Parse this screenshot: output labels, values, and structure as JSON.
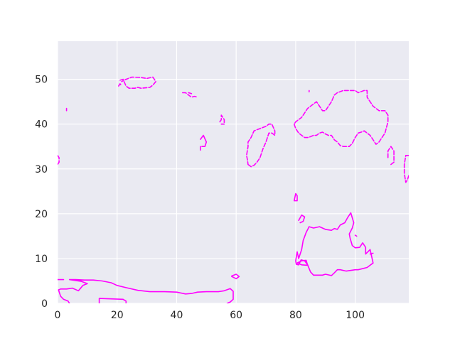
{
  "chart_data": {
    "type": "contour",
    "title": "",
    "xlabel": "",
    "ylabel": "",
    "xlim": [
      0,
      118
    ],
    "ylim": [
      0,
      58.5
    ],
    "x_ticks": [
      0,
      20,
      40,
      60,
      80,
      100
    ],
    "y_ticks": [
      0,
      10,
      20,
      30,
      40,
      50
    ],
    "grid": true,
    "background": "#eaeaf2",
    "line_color": "#ff00ff",
    "series": [
      {
        "style": "solid",
        "paths": [
          [
            [
              0,
              5.3
            ],
            [
              2,
              5.3
            ]
          ],
          [
            [
              0.3,
              3.0
            ],
            [
              1,
              3.2
            ],
            [
              3,
              3.2
            ],
            [
              5,
              3.4
            ],
            [
              7,
              2.8
            ],
            [
              8.5,
              4.0
            ],
            [
              10,
              4.4
            ],
            [
              8,
              4.9
            ],
            [
              4,
              5.3
            ],
            [
              6,
              5.3
            ],
            [
              9,
              5.2
            ],
            [
              12,
              5.2
            ],
            [
              15,
              5.0
            ],
            [
              18,
              4.6
            ],
            [
              20,
              4.0
            ],
            [
              23,
              3.5
            ],
            [
              27,
              2.9
            ],
            [
              31,
              2.6
            ],
            [
              36,
              2.6
            ],
            [
              40,
              2.5
            ],
            [
              43,
              2.1
            ],
            [
              45,
              2.2
            ],
            [
              47,
              2.5
            ],
            [
              50,
              2.6
            ],
            [
              54,
              2.6
            ],
            [
              56,
              2.8
            ],
            [
              58,
              3.3
            ],
            [
              59,
              2.7
            ],
            [
              59,
              0.9
            ],
            [
              58,
              0.3
            ],
            [
              57,
              0
            ]
          ],
          [
            [
              0.3,
              3.0
            ],
            [
              1,
              1.6
            ],
            [
              2,
              0.9
            ],
            [
              3.5,
              0.5
            ],
            [
              4,
              0
            ]
          ],
          [
            [
              14,
              0
            ],
            [
              14,
              1.1
            ],
            [
              22,
              0.9
            ],
            [
              23,
              0.5
            ],
            [
              23,
              0
            ]
          ],
          [
            [
              58.5,
              6.1
            ],
            [
              60,
              6.5
            ],
            [
              61,
              6.0
            ],
            [
              60,
              5.5
            ],
            [
              58.5,
              6.0
            ]
          ],
          [
            [
              48,
              36.6
            ],
            [
              49,
              37.5
            ],
            [
              50,
              36.0
            ],
            [
              49.5,
              35.0
            ],
            [
              48.5,
              35.0
            ]
          ],
          [
            [
              48,
              35.0
            ],
            [
              48,
              34.2
            ]
          ],
          [
            [
              79.5,
              22.9
            ],
            [
              80,
              24.5
            ],
            [
              80.5,
              24.0
            ],
            [
              80.5,
              22.9
            ],
            [
              79.5,
              22.9
            ]
          ],
          [
            [
              81,
              18.5
            ],
            [
              82,
              19.7
            ],
            [
              83,
              19.3
            ],
            [
              82.5,
              18.3
            ],
            [
              81.5,
              18.0
            ]
          ],
          [
            [
              80,
              9.5
            ],
            [
              80.2,
              8.7
            ],
            [
              81,
              8.6
            ],
            [
              81.8,
              9.7
            ],
            [
              83,
              9.5
            ],
            [
              84,
              8.6
            ],
            [
              85,
              7.0
            ],
            [
              86,
              6.3
            ],
            [
              89,
              6.3
            ],
            [
              90,
              6.5
            ],
            [
              92,
              6.2
            ],
            [
              93,
              6.8
            ],
            [
              94,
              7.5
            ],
            [
              95,
              7.5
            ],
            [
              97,
              7.2
            ],
            [
              100,
              7.5
            ],
            [
              101,
              7.5
            ],
            [
              104,
              8.0
            ],
            [
              106,
              9.0
            ],
            [
              105,
              12.0
            ],
            [
              103.5,
              11.0
            ],
            [
              103.5,
              12.5
            ],
            [
              102.5,
              13.5
            ],
            [
              101.5,
              12.5
            ],
            [
              100,
              12.4
            ],
            [
              99,
              12.9
            ],
            [
              98.3,
              14.5
            ],
            [
              98,
              15.5
            ],
            [
              99,
              16.8
            ],
            [
              99.5,
              18.0
            ],
            [
              98.5,
              20.2
            ],
            [
              97.5,
              19.2
            ],
            [
              96.5,
              18.0
            ],
            [
              95,
              17.5
            ],
            [
              94,
              16.5
            ],
            [
              93,
              16.7
            ],
            [
              92,
              16.3
            ],
            [
              90,
              16.5
            ],
            [
              88,
              17.1
            ],
            [
              86,
              16.8
            ],
            [
              84.5,
              17.1
            ],
            [
              83.5,
              15.8
            ],
            [
              82.5,
              14.0
            ],
            [
              82,
              12.0
            ],
            [
              81,
              10.0
            ],
            [
              80.5,
              11.5
            ],
            [
              80,
              9.5
            ]
          ],
          [
            [
              80.5,
              9.0
            ],
            [
              82,
              8.6
            ],
            [
              84,
              8.5
            ],
            [
              83.5,
              9.6
            ],
            [
              82,
              9.5
            ],
            [
              80.5,
              9.0
            ]
          ],
          [
            [
              100,
              15.2
            ],
            [
              100.5,
              15.0
            ]
          ],
          [
            [
              105,
              11.0
            ],
            [
              106,
              11.2
            ]
          ]
        ]
      },
      {
        "style": "dashed",
        "paths": [
          [
            [
              20.5,
              48.5
            ],
            [
              21,
              49.0
            ],
            [
              21.5,
              48.5
            ]
          ],
          [
            [
              21,
              49.8
            ],
            [
              22,
              50.0
            ],
            [
              23,
              48.5
            ],
            [
              24,
              48.0
            ],
            [
              26,
              48.0
            ],
            [
              27,
              48.2
            ],
            [
              28,
              48.0
            ],
            [
              31,
              48.2
            ],
            [
              32,
              48.7
            ],
            [
              33,
              49.5
            ],
            [
              32,
              50.5
            ],
            [
              30,
              50.2
            ],
            [
              28,
              50.4
            ],
            [
              25,
              50.5
            ],
            [
              23,
              50.0
            ],
            [
              21.5,
              49.5
            ]
          ],
          [
            [
              42,
              47.0
            ],
            [
              43,
              47.0
            ],
            [
              44,
              46.5
            ],
            [
              45,
              46.0
            ],
            [
              46,
              46.2
            ],
            [
              47,
              46.0
            ]
          ],
          [
            [
              44,
              47.0
            ],
            [
              45,
              46.8
            ]
          ],
          [
            [
              3,
              43.0
            ],
            [
              3,
              43.5
            ]
          ],
          [
            [
              84.5,
              47.2
            ],
            [
              84.5,
              47.5
            ]
          ],
          [
            [
              54.5,
              40.5
            ],
            [
              55,
              41.0
            ],
            [
              55,
              42.0
            ],
            [
              56,
              41.0
            ],
            [
              56,
              40.0
            ],
            [
              55,
              40.0
            ]
          ],
          [
            [
              64,
              31.0
            ],
            [
              65,
              30.5
            ],
            [
              66,
              30.8
            ],
            [
              67,
              31.5
            ],
            [
              68,
              32.5
            ],
            [
              69,
              34.5
            ],
            [
              70,
              36.0
            ],
            [
              71,
              38.0
            ],
            [
              72,
              38.0
            ],
            [
              73,
              37.5
            ],
            [
              73,
              38.5
            ],
            [
              72,
              40.0
            ],
            [
              71,
              40.0
            ],
            [
              70,
              39.5
            ],
            [
              68,
              39.0
            ],
            [
              66,
              38.5
            ],
            [
              65,
              37.0
            ],
            [
              64,
              36.0
            ],
            [
              64,
              35.0
            ],
            [
              63.5,
              33.0
            ],
            [
              63.8,
              32.0
            ],
            [
              64,
              31.0
            ]
          ],
          [
            [
              79.5,
              40.0
            ],
            [
              80,
              39.0
            ],
            [
              81,
              38.0
            ],
            [
              82,
              37.5
            ],
            [
              83,
              37.0
            ],
            [
              84,
              37.0
            ],
            [
              85,
              37.2
            ],
            [
              86,
              37.5
            ],
            [
              87,
              37.5
            ],
            [
              88,
              38.0
            ],
            [
              89,
              38.2
            ],
            [
              90,
              37.8
            ],
            [
              91,
              37.5
            ],
            [
              92,
              37.5
            ],
            [
              93,
              36.5
            ],
            [
              94,
              36.0
            ],
            [
              95,
              35.2
            ],
            [
              96,
              35.0
            ],
            [
              97,
              35.0
            ],
            [
              98,
              35.0
            ],
            [
              99,
              35.7
            ],
            [
              100,
              37.0
            ],
            [
              101,
              38.0
            ],
            [
              102,
              38.2
            ],
            [
              103,
              38.5
            ],
            [
              104,
              38.0
            ],
            [
              105,
              37.5
            ],
            [
              106,
              36.5
            ],
            [
              107,
              35.5
            ],
            [
              108,
              36.0
            ],
            [
              109,
              37.0
            ],
            [
              110,
              38.0
            ],
            [
              111,
              40.5
            ],
            [
              111,
              42.0
            ],
            [
              110,
              43.0
            ],
            [
              108,
              43.0
            ],
            [
              107,
              43.5
            ],
            [
              106,
              44.0
            ],
            [
              105,
              45.0
            ],
            [
              104,
              46.0
            ],
            [
              104,
              47.5
            ],
            [
              103,
              47.5
            ],
            [
              101,
              47.0
            ],
            [
              100,
              47.5
            ],
            [
              98,
              47.5
            ],
            [
              96,
              47.5
            ],
            [
              94,
              47.0
            ],
            [
              93,
              46.5
            ],
            [
              92,
              45.0
            ],
            [
              91,
              44.0
            ],
            [
              90,
              43.0
            ],
            [
              89,
              43.0
            ],
            [
              88,
              44.0
            ],
            [
              87,
              45.0
            ],
            [
              86,
              44.5
            ],
            [
              85,
              44.0
            ],
            [
              84,
              43.5
            ],
            [
              83,
              42.5
            ],
            [
              82,
              41.5
            ],
            [
              81,
              41.0
            ],
            [
              80,
              40.5
            ],
            [
              79.5,
              40.0
            ]
          ],
          [
            [
              112,
              31.0
            ],
            [
              113,
              31.5
            ],
            [
              113,
              34.0
            ],
            [
              112,
              35.0
            ],
            [
              111,
              34.0
            ],
            [
              111,
              32.5
            ]
          ],
          [
            [
              0,
              33.0
            ],
            [
              0.5,
              32.5
            ],
            [
              0.5,
              31.5
            ],
            [
              0,
              31.0
            ]
          ],
          [
            [
              118,
              33.0
            ],
            [
              117,
              33.0
            ],
            [
              116.5,
              31.0
            ],
            [
              116.5,
              29.0
            ],
            [
              117,
              27.0
            ],
            [
              117.5,
              27.5
            ],
            [
              118,
              28.5
            ]
          ]
        ]
      }
    ]
  }
}
